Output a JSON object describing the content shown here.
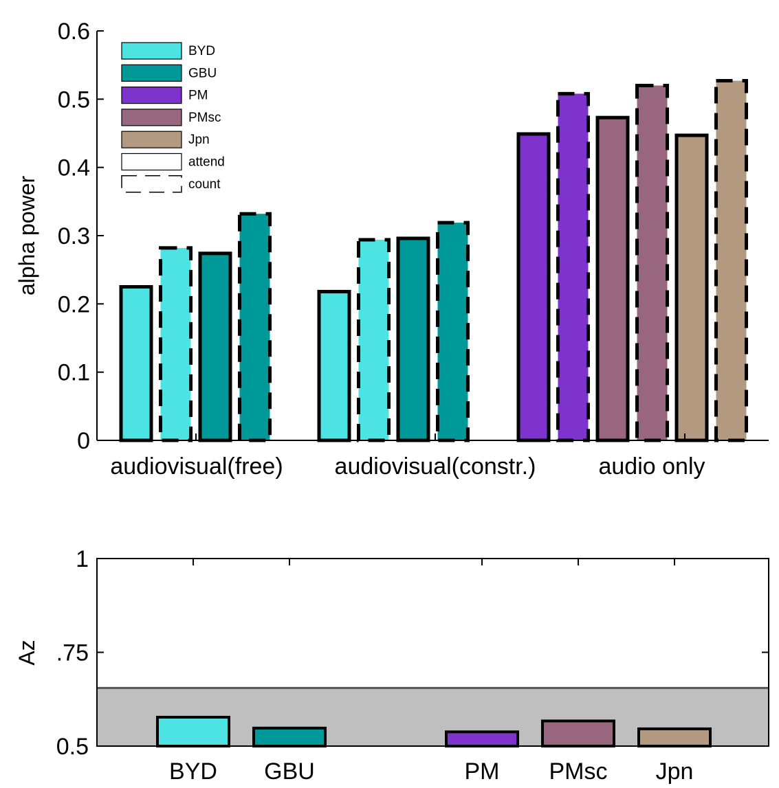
{
  "chart_data": [
    {
      "type": "bar",
      "ylabel": "alpha power",
      "ylim": [
        0,
        0.6
      ],
      "yticks": [
        "0",
        "0.1",
        "0.2",
        "0.3",
        "0.4",
        "0.5",
        "0.6"
      ],
      "groups": [
        "audiovisual(free)",
        "audiovisual(constr.)",
        "audio only"
      ],
      "legend": {
        "placement": "top-left",
        "entries": [
          {
            "label": "BYD",
            "color": "#4DE3E3",
            "style": "fill"
          },
          {
            "label": "GBU",
            "color": "#009999",
            "style": "fill"
          },
          {
            "label": "PM",
            "color": "#7D33CC",
            "style": "fill"
          },
          {
            "label": "PMsc",
            "color": "#99667F",
            "style": "fill"
          },
          {
            "label": "Jpn",
            "color": "#B39980",
            "style": "fill"
          },
          {
            "label": "attend",
            "style": "solid"
          },
          {
            "label": "count",
            "style": "dashed"
          }
        ]
      },
      "bars": [
        {
          "group": "audiovisual(free)",
          "stimulus": "BYD",
          "condition": "attend",
          "value": 0.225
        },
        {
          "group": "audiovisual(free)",
          "stimulus": "BYD",
          "condition": "count",
          "value": 0.282
        },
        {
          "group": "audiovisual(free)",
          "stimulus": "GBU",
          "condition": "attend",
          "value": 0.274
        },
        {
          "group": "audiovisual(free)",
          "stimulus": "GBU",
          "condition": "count",
          "value": 0.332
        },
        {
          "group": "audiovisual(constr.)",
          "stimulus": "BYD",
          "condition": "attend",
          "value": 0.218
        },
        {
          "group": "audiovisual(constr.)",
          "stimulus": "BYD",
          "condition": "count",
          "value": 0.294
        },
        {
          "group": "audiovisual(constr.)",
          "stimulus": "GBU",
          "condition": "attend",
          "value": 0.296
        },
        {
          "group": "audiovisual(constr.)",
          "stimulus": "GBU",
          "condition": "count",
          "value": 0.319
        },
        {
          "group": "audio only",
          "stimulus": "PM",
          "condition": "attend",
          "value": 0.449
        },
        {
          "group": "audio only",
          "stimulus": "PM",
          "condition": "count",
          "value": 0.508
        },
        {
          "group": "audio only",
          "stimulus": "PMsc",
          "condition": "attend",
          "value": 0.473
        },
        {
          "group": "audio only",
          "stimulus": "PMsc",
          "condition": "count",
          "value": 0.52
        },
        {
          "group": "audio only",
          "stimulus": "Jpn",
          "condition": "attend",
          "value": 0.447
        },
        {
          "group": "audio only",
          "stimulus": "Jpn",
          "condition": "count",
          "value": 0.527
        }
      ]
    },
    {
      "type": "bar",
      "ylabel": "Az",
      "ylim": [
        0.5,
        1
      ],
      "yticks": [
        {
          "value": 0.5,
          "label": "0.5"
        },
        {
          "value": 0.75,
          "label": ".75"
        },
        {
          "value": 1,
          "label": "1"
        }
      ],
      "categories": [
        "BYD",
        "GBU",
        "PM",
        "PMsc",
        "Jpn"
      ],
      "values": [
        0.577,
        0.548,
        0.538,
        0.567,
        0.546
      ],
      "colors": [
        "#4DE3E3",
        "#009999",
        "#7D33CC",
        "#99667F",
        "#B39980"
      ],
      "chance_threshold": 0.655,
      "chance_band_color": "#BFBFBF"
    }
  ]
}
